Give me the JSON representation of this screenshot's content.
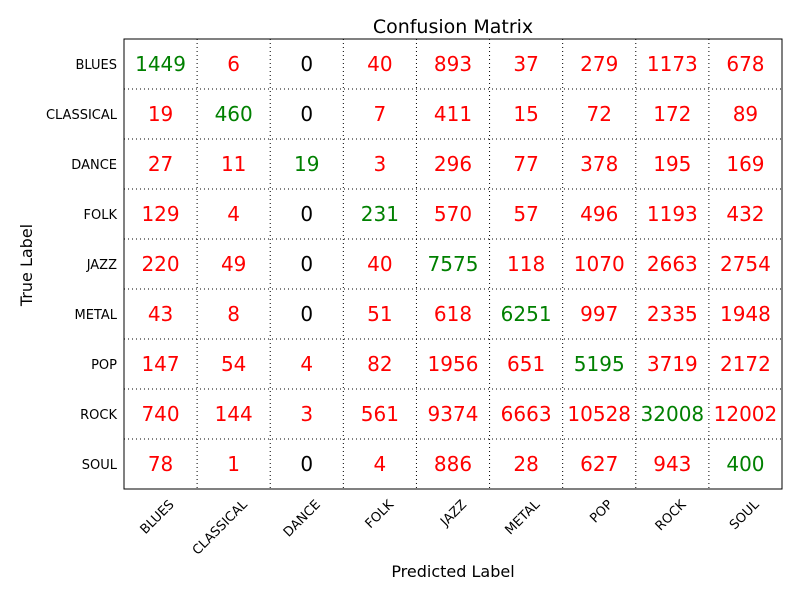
{
  "chart_data": {
    "type": "heatmap",
    "title": "Confusion Matrix",
    "xlabel": "Predicted Label",
    "ylabel": "True Label",
    "x_categories": [
      "BLUES",
      "CLASSICAL",
      "DANCE",
      "FOLK",
      "JAZZ",
      "METAL",
      "POP",
      "ROCK",
      "SOUL"
    ],
    "y_categories": [
      "BLUES",
      "CLASSICAL",
      "DANCE",
      "FOLK",
      "JAZZ",
      "METAL",
      "POP",
      "ROCK",
      "SOUL"
    ],
    "values": [
      [
        1449,
        6,
        0,
        40,
        893,
        37,
        279,
        1173,
        678
      ],
      [
        19,
        460,
        0,
        7,
        411,
        15,
        72,
        172,
        89
      ],
      [
        27,
        11,
        19,
        3,
        296,
        77,
        378,
        195,
        169
      ],
      [
        129,
        4,
        0,
        231,
        570,
        57,
        496,
        1193,
        432
      ],
      [
        220,
        49,
        0,
        40,
        7575,
        118,
        1070,
        2663,
        2754
      ],
      [
        43,
        8,
        0,
        51,
        618,
        6251,
        997,
        2335,
        1948
      ],
      [
        147,
        54,
        4,
        82,
        1956,
        651,
        5195,
        3719,
        2172
      ],
      [
        740,
        144,
        3,
        561,
        9374,
        6663,
        10528,
        32008,
        12002
      ],
      [
        78,
        1,
        0,
        4,
        886,
        28,
        627,
        943,
        400
      ]
    ],
    "grid": true,
    "colors": {
      "diagonal": "#008000",
      "off_diagonal": "#ff0000",
      "zero": "#000000",
      "grid": "#000000",
      "frame": "#000000"
    }
  }
}
